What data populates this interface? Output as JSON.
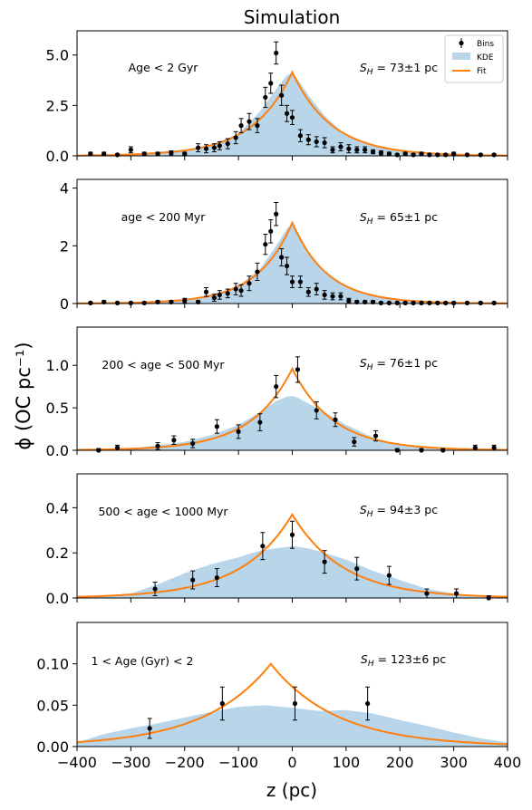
{
  "figure": {
    "title": "Simulation",
    "ylabel": "ϕ (OC pc⁻¹)",
    "xlabel": "z (pc)",
    "colors": {
      "bins": "#000000",
      "kde": "#b9d5ea",
      "fit": "#ff7f0e"
    }
  },
  "legend": {
    "items": [
      "Bins",
      "KDE",
      "Fit"
    ]
  },
  "chart_data": [
    {
      "type": "line",
      "label": "Age < 2 Gyr",
      "sh_label": "S",
      "sh_sub": "H",
      "sh_value": " = 73±1 pc",
      "xlim": [
        -400,
        400
      ],
      "ylim": [
        0,
        6.2
      ],
      "yticks": [
        0.0,
        2.5,
        5.0
      ],
      "ytick_labels": [
        "0.0",
        "2.5",
        "5.0"
      ],
      "fit": {
        "peak": 4.15,
        "center": 0,
        "scale": 73
      },
      "bins": {
        "x": [
          -375,
          -350,
          -325,
          -300,
          -275,
          -250,
          -225,
          -200,
          -175,
          -160,
          -145,
          -135,
          -120,
          -105,
          -95,
          -80,
          -65,
          -50,
          -40,
          -30,
          -20,
          -10,
          0,
          15,
          30,
          45,
          60,
          75,
          90,
          105,
          120,
          135,
          150,
          165,
          180,
          195,
          210,
          225,
          240,
          255,
          270,
          285,
          300,
          325,
          350,
          375
        ],
        "y": [
          0.1,
          0.1,
          0.05,
          0.3,
          0.1,
          0.1,
          0.15,
          0.1,
          0.4,
          0.35,
          0.4,
          0.5,
          0.6,
          0.9,
          1.5,
          1.7,
          1.5,
          2.9,
          3.6,
          5.1,
          3.0,
          2.1,
          1.9,
          1.0,
          0.8,
          0.7,
          0.65,
          0.3,
          0.45,
          0.35,
          0.3,
          0.3,
          0.2,
          0.15,
          0.1,
          0.05,
          0.1,
          0.05,
          0.1,
          0.05,
          0.05,
          0.05,
          0.1,
          0.05,
          0.05,
          0.05
        ],
        "err": [
          0.08,
          0.08,
          0.05,
          0.15,
          0.08,
          0.08,
          0.1,
          0.08,
          0.2,
          0.2,
          0.2,
          0.2,
          0.25,
          0.3,
          0.35,
          0.4,
          0.35,
          0.5,
          0.5,
          0.55,
          0.5,
          0.4,
          0.35,
          0.3,
          0.25,
          0.25,
          0.25,
          0.15,
          0.2,
          0.2,
          0.15,
          0.15,
          0.1,
          0.1,
          0.08,
          0.05,
          0.08,
          0.05,
          0.08,
          0.05,
          0.05,
          0.05,
          0.08,
          0.05,
          0.05,
          0.05
        ]
      },
      "kde": {
        "x": [
          -400,
          -300,
          -200,
          -150,
          -100,
          -60,
          -30,
          -10,
          0,
          10,
          30,
          60,
          100,
          150,
          200,
          300,
          400
        ],
        "y": [
          0.0,
          0.1,
          0.3,
          0.5,
          1.1,
          2.2,
          3.3,
          4.0,
          4.1,
          3.8,
          3.0,
          2.0,
          1.0,
          0.5,
          0.25,
          0.08,
          0.0
        ]
      }
    },
    {
      "type": "line",
      "label": "age < 200 Myr",
      "sh_label": "S",
      "sh_sub": "H",
      "sh_value": " = 65±1 pc",
      "xlim": [
        -400,
        400
      ],
      "ylim": [
        0,
        4.3
      ],
      "yticks": [
        0,
        2,
        4
      ],
      "ytick_labels": [
        "0",
        "2",
        "4"
      ],
      "fit": {
        "peak": 2.8,
        "center": 0,
        "scale": 65
      },
      "bins": {
        "x": [
          -375,
          -350,
          -325,
          -300,
          -275,
          -250,
          -225,
          -200,
          -175,
          -160,
          -145,
          -135,
          -120,
          -105,
          -95,
          -80,
          -65,
          -50,
          -40,
          -30,
          -20,
          -10,
          0,
          15,
          30,
          45,
          60,
          75,
          90,
          105,
          120,
          135,
          150,
          165,
          180,
          195,
          210,
          225,
          240,
          255,
          270,
          285,
          300,
          325,
          350,
          375
        ],
        "y": [
          0.02,
          0.05,
          0.02,
          0.02,
          0.02,
          0.05,
          0.05,
          0.1,
          0.05,
          0.4,
          0.2,
          0.3,
          0.35,
          0.5,
          0.45,
          0.7,
          1.1,
          2.05,
          2.5,
          3.1,
          1.6,
          1.3,
          0.75,
          0.75,
          0.4,
          0.5,
          0.3,
          0.25,
          0.25,
          0.1,
          0.05,
          0.05,
          0.05,
          0.02,
          0.02,
          0.02,
          0.02,
          0.02,
          0.02,
          0.02,
          0.02,
          0.02,
          0.02,
          0.02,
          0.02,
          0.02
        ],
        "err": [
          0.03,
          0.05,
          0.03,
          0.03,
          0.03,
          0.05,
          0.05,
          0.08,
          0.05,
          0.15,
          0.12,
          0.15,
          0.15,
          0.2,
          0.2,
          0.25,
          0.3,
          0.35,
          0.4,
          0.4,
          0.3,
          0.3,
          0.2,
          0.2,
          0.15,
          0.2,
          0.15,
          0.12,
          0.12,
          0.08,
          0.05,
          0.05,
          0.05,
          0.03,
          0.03,
          0.03,
          0.03,
          0.03,
          0.03,
          0.03,
          0.03,
          0.03,
          0.03,
          0.03,
          0.03,
          0.03
        ]
      },
      "kde": {
        "x": [
          -400,
          -300,
          -200,
          -150,
          -100,
          -60,
          -30,
          -10,
          0,
          10,
          30,
          60,
          100,
          150,
          200,
          300,
          400
        ],
        "y": [
          0.0,
          0.05,
          0.15,
          0.3,
          0.6,
          1.2,
          2.0,
          2.6,
          2.75,
          2.5,
          1.8,
          1.1,
          0.6,
          0.3,
          0.15,
          0.04,
          0.0
        ]
      }
    },
    {
      "type": "line",
      "label": "200 < age < 500 Myr",
      "sh_label": "S",
      "sh_sub": "H",
      "sh_value": " = 76±1 pc",
      "xlim": [
        -400,
        400
      ],
      "ylim": [
        0,
        1.45
      ],
      "yticks": [
        0.0,
        0.5,
        1.0
      ],
      "ytick_labels": [
        "0.0",
        "0.5",
        "1.0"
      ],
      "fit": {
        "peak": 0.96,
        "center": 0,
        "scale": 76
      },
      "bins": {
        "x": [
          -360,
          -325,
          -250,
          -220,
          -185,
          -140,
          -100,
          -60,
          -30,
          10,
          45,
          80,
          115,
          155,
          195,
          240,
          280,
          340,
          375
        ],
        "y": [
          0.0,
          0.03,
          0.05,
          0.12,
          0.08,
          0.28,
          0.22,
          0.33,
          0.75,
          0.95,
          0.47,
          0.36,
          0.1,
          0.17,
          0.0,
          0.0,
          0.0,
          0.03,
          0.03
        ],
        "err": [
          0.02,
          0.03,
          0.04,
          0.05,
          0.05,
          0.08,
          0.08,
          0.1,
          0.13,
          0.15,
          0.1,
          0.08,
          0.05,
          0.06,
          0.02,
          0.02,
          0.02,
          0.03,
          0.03
        ]
      },
      "kde": {
        "x": [
          -400,
          -300,
          -200,
          -150,
          -100,
          -60,
          -30,
          -10,
          0,
          10,
          30,
          60,
          100,
          150,
          200,
          300,
          400
        ],
        "y": [
          0.0,
          0.02,
          0.1,
          0.18,
          0.3,
          0.45,
          0.58,
          0.63,
          0.64,
          0.62,
          0.55,
          0.45,
          0.3,
          0.15,
          0.06,
          0.01,
          0.0
        ]
      }
    },
    {
      "type": "line",
      "label": "500 < age < 1000 Myr",
      "sh_label": "S",
      "sh_sub": "H",
      "sh_value": " = 94±3 pc",
      "xlim": [
        -400,
        400
      ],
      "ylim": [
        0,
        0.55
      ],
      "yticks": [
        0.0,
        0.2,
        0.4
      ],
      "ytick_labels": [
        "0.0",
        "0.2",
        "0.4"
      ],
      "fit": {
        "peak": 0.37,
        "center": 0,
        "scale": 94
      },
      "bins": {
        "x": [
          -255,
          -185,
          -140,
          -55,
          0,
          60,
          120,
          180,
          250,
          305,
          365
        ],
        "y": [
          0.04,
          0.08,
          0.09,
          0.23,
          0.28,
          0.16,
          0.13,
          0.1,
          0.02,
          0.02,
          0.0
        ],
        "err": [
          0.03,
          0.04,
          0.04,
          0.06,
          0.06,
          0.05,
          0.05,
          0.04,
          0.02,
          0.02,
          0.01
        ]
      },
      "kde": {
        "x": [
          -400,
          -300,
          -250,
          -200,
          -150,
          -100,
          -60,
          -30,
          0,
          30,
          60,
          100,
          150,
          200,
          250,
          300,
          400
        ],
        "y": [
          0.0,
          0.02,
          0.06,
          0.11,
          0.15,
          0.18,
          0.21,
          0.22,
          0.23,
          0.22,
          0.2,
          0.17,
          0.12,
          0.08,
          0.04,
          0.02,
          0.0
        ]
      }
    },
    {
      "type": "line",
      "label": "1 < Age (Gyr) < 2",
      "sh_label": "S",
      "sh_sub": "H",
      "sh_value": " = 123±6 pc",
      "xlim": [
        -400,
        400
      ],
      "ylim": [
        0,
        0.15
      ],
      "yticks": [
        0.0,
        0.05,
        0.1
      ],
      "ytick_labels": [
        "0.00",
        "0.05",
        "0.10"
      ],
      "fit": {
        "peak": 0.1,
        "center": -40,
        "scale": 123
      },
      "bins": {
        "x": [
          -265,
          -130,
          5,
          140
        ],
        "y": [
          0.022,
          0.052,
          0.052,
          0.052
        ],
        "err": [
          0.012,
          0.02,
          0.02,
          0.02
        ]
      },
      "kde": {
        "x": [
          -400,
          -350,
          -300,
          -250,
          -200,
          -150,
          -100,
          -50,
          0,
          50,
          100,
          150,
          200,
          250,
          300,
          350,
          400
        ],
        "y": [
          0.005,
          0.015,
          0.022,
          0.028,
          0.035,
          0.042,
          0.048,
          0.05,
          0.047,
          0.043,
          0.044,
          0.04,
          0.032,
          0.025,
          0.017,
          0.01,
          0.005
        ]
      }
    }
  ],
  "xaxis": {
    "ticks": [
      -400,
      -300,
      -200,
      -100,
      0,
      100,
      200,
      300,
      400
    ],
    "tick_labels": [
      "−400",
      "−300",
      "−200",
      "−100",
      "0",
      "100",
      "200",
      "300",
      "400"
    ]
  }
}
